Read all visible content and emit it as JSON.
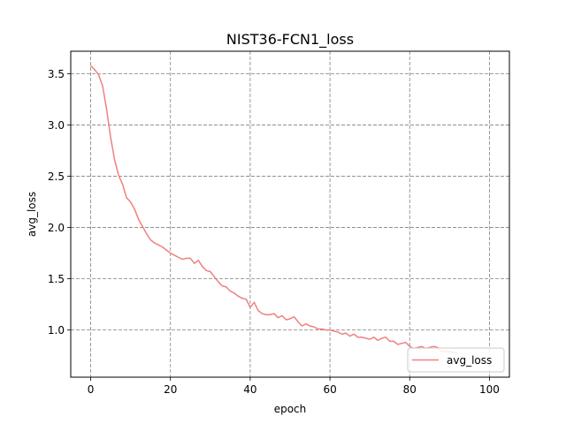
{
  "chart_data": {
    "type": "line",
    "title": "NIST36-FCN1_loss",
    "xlabel": "epoch",
    "ylabel": "avg_loss",
    "xlim": [
      -5,
      105
    ],
    "ylim": [
      0.54,
      3.72
    ],
    "xticks": [
      0,
      20,
      40,
      60,
      80,
      100
    ],
    "xtick_labels": [
      "0",
      "20",
      "40",
      "60",
      "80",
      "100"
    ],
    "yticks": [
      1.0,
      1.5,
      2.0,
      2.5,
      3.0,
      3.5
    ],
    "ytick_labels": [
      "1.0",
      "1.5",
      "2.0",
      "2.5",
      "3.0",
      "3.5"
    ],
    "grid": true,
    "grid_style": "dashed",
    "legend_position": "lower-right",
    "series": [
      {
        "name": "avg_loss",
        "color": "#f08080",
        "x": [
          0,
          1,
          2,
          3,
          4,
          5,
          6,
          7,
          8,
          9,
          10,
          11,
          12,
          13,
          14,
          15,
          16,
          17,
          18,
          19,
          20,
          21,
          22,
          23,
          24,
          25,
          26,
          27,
          28,
          29,
          30,
          31,
          32,
          33,
          34,
          35,
          36,
          37,
          38,
          39,
          40,
          41,
          42,
          43,
          44,
          45,
          46,
          47,
          48,
          49,
          50,
          51,
          52,
          53,
          54,
          55,
          56,
          57,
          58,
          59,
          60,
          61,
          62,
          63,
          64,
          65,
          66,
          67,
          68,
          69,
          70,
          71,
          72,
          73,
          74,
          75,
          76,
          77,
          78,
          79,
          80,
          81,
          82,
          83,
          84,
          85,
          86,
          87,
          88,
          89,
          90,
          91,
          92
        ],
        "values": [
          3.58,
          3.54,
          3.49,
          3.38,
          3.15,
          2.88,
          2.66,
          2.51,
          2.42,
          2.29,
          2.25,
          2.18,
          2.08,
          2.01,
          1.94,
          1.88,
          1.85,
          1.83,
          1.81,
          1.78,
          1.75,
          1.73,
          1.71,
          1.69,
          1.7,
          1.7,
          1.65,
          1.68,
          1.62,
          1.58,
          1.57,
          1.52,
          1.47,
          1.43,
          1.42,
          1.38,
          1.36,
          1.33,
          1.31,
          1.3,
          1.22,
          1.27,
          1.19,
          1.16,
          1.15,
          1.15,
          1.16,
          1.12,
          1.14,
          1.1,
          1.11,
          1.13,
          1.08,
          1.04,
          1.06,
          1.04,
          1.03,
          1.01,
          1.01,
          1.0,
          1.0,
          0.99,
          0.98,
          0.96,
          0.97,
          0.94,
          0.96,
          0.93,
          0.93,
          0.92,
          0.91,
          0.93,
          0.9,
          0.92,
          0.93,
          0.89,
          0.89,
          0.86,
          0.87,
          0.88,
          0.84,
          0.82,
          0.83,
          0.84,
          0.82,
          0.83,
          0.84,
          0.83,
          0.79,
          0.79,
          0.79,
          0.78,
          0.77
        ]
      }
    ]
  }
}
